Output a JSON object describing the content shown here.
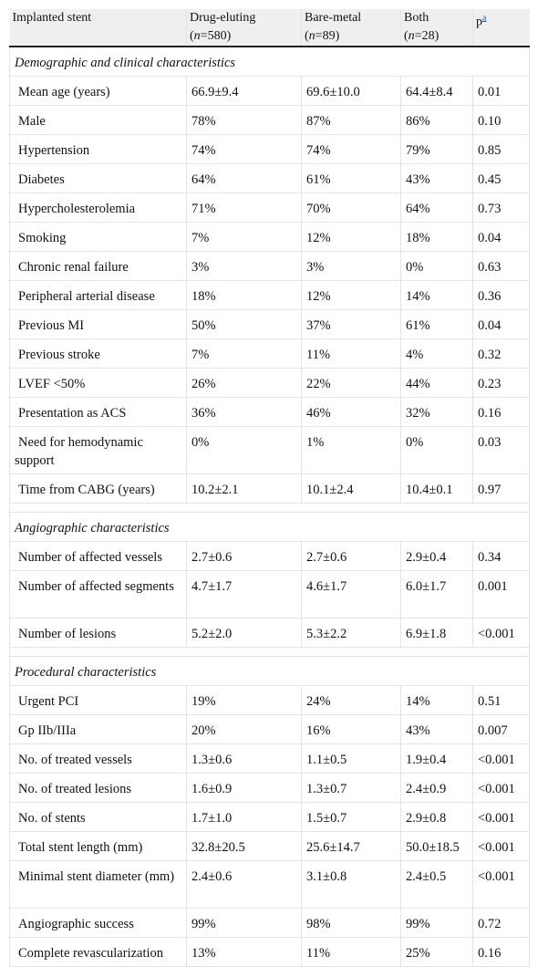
{
  "header": {
    "col1": "Implanted stent",
    "col2_label": "Drug-eluting",
    "col2_n": "580",
    "col3_label": "Bare-metal",
    "col3_n": "89",
    "col4_label": "Both",
    "col4_n": "28",
    "col5_label": "p",
    "col5_sup": "a"
  },
  "sections": [
    {
      "title": "Demographic and clinical characteristics",
      "rows": [
        {
          "label": "Mean age (years)",
          "de": "66.9±9.4",
          "bm": "69.6±10.0",
          "both": "64.4±8.4",
          "p": "0.01"
        },
        {
          "label": "Male",
          "de": "78%",
          "bm": "87%",
          "both": "86%",
          "p": "0.10"
        },
        {
          "label": "Hypertension",
          "de": "74%",
          "bm": "74%",
          "both": "79%",
          "p": "0.85"
        },
        {
          "label": "Diabetes",
          "de": "64%",
          "bm": "61%",
          "both": "43%",
          "p": "0.45"
        },
        {
          "label": "Hypercholesterolemia",
          "de": "71%",
          "bm": "70%",
          "both": "64%",
          "p": "0.73"
        },
        {
          "label": "Smoking",
          "de": "7%",
          "bm": "12%",
          "both": "18%",
          "p": "0.04"
        },
        {
          "label": "Chronic renal failure",
          "de": "3%",
          "bm": "3%",
          "both": "0%",
          "p": "0.63"
        },
        {
          "label": "Peripheral arterial disease",
          "de": "18%",
          "bm": "12%",
          "both": "14%",
          "p": "0.36"
        },
        {
          "label": "Previous MI",
          "de": "50%",
          "bm": "37%",
          "both": "61%",
          "p": "0.04"
        },
        {
          "label": "Previous stroke",
          "de": "7%",
          "bm": "11%",
          "both": "4%",
          "p": "0.32"
        },
        {
          "label": "LVEF <50%",
          "de": "26%",
          "bm": "22%",
          "both": "44%",
          "p": "0.23"
        },
        {
          "label": "Presentation as ACS",
          "de": "36%",
          "bm": "46%",
          "both": "32%",
          "p": "0.16"
        },
        {
          "label": "Need for hemodynamic support",
          "de": "0%",
          "bm": "1%",
          "both": "0%",
          "p": "0.03",
          "tall": true
        },
        {
          "label": "Time from CABG (years)",
          "de": "10.2±2.1",
          "bm": "10.1±2.4",
          "both": "10.4±0.1",
          "p": "0.97"
        }
      ]
    },
    {
      "title": "Angiographic characteristics",
      "rows": [
        {
          "label": "Number of affected vessels",
          "de": "2.7±0.6",
          "bm": "2.7±0.6",
          "both": "2.9±0.4",
          "p": "0.34"
        },
        {
          "label": "Number of affected segments",
          "de": "4.7±1.7",
          "bm": "4.6±1.7",
          "both": "6.0±1.7",
          "p": "0.001",
          "tall": true
        },
        {
          "label": "Number of lesions",
          "de": "5.2±2.0",
          "bm": "5.3±2.2",
          "both": "6.9±1.8",
          "p": "<0.001"
        }
      ]
    },
    {
      "title": "Procedural characteristics",
      "rows": [
        {
          "label": "Urgent PCI",
          "de": "19%",
          "bm": "24%",
          "both": "14%",
          "p": "0.51"
        },
        {
          "label": "Gp IIb/IIIa",
          "de": "20%",
          "bm": "16%",
          "both": "43%",
          "p": "0.007"
        },
        {
          "label": "No. of treated vessels",
          "de": "1.3±0.6",
          "bm": "1.1±0.5",
          "both": "1.9±0.4",
          "p": "<0.001"
        },
        {
          "label": "No. of treated lesions",
          "de": "1.6±0.9",
          "bm": "1.3±0.7",
          "both": "2.4±0.9",
          "p": "<0.001"
        },
        {
          "label": "No. of stents",
          "de": "1.7±1.0",
          "bm": "1.5±0.7",
          "both": "2.9±0.8",
          "p": "<0.001"
        },
        {
          "label": "Total stent length (mm)",
          "de": "32.8±20.5",
          "bm": "25.6±14.7",
          "both": "50.0±18.5",
          "p": "<0.001"
        },
        {
          "label": "Minimal stent diameter (mm)",
          "de": "2.4±0.6",
          "bm": "3.1±0.8",
          "both": "2.4±0.5",
          "p": "<0.001",
          "tall": true
        },
        {
          "label": "Angiographic success",
          "de": "99%",
          "bm": "98%",
          "both": "99%",
          "p": "0.72"
        },
        {
          "label": "Complete revascularization",
          "de": "13%",
          "bm": "11%",
          "both": "25%",
          "p": "0.16"
        }
      ]
    }
  ]
}
